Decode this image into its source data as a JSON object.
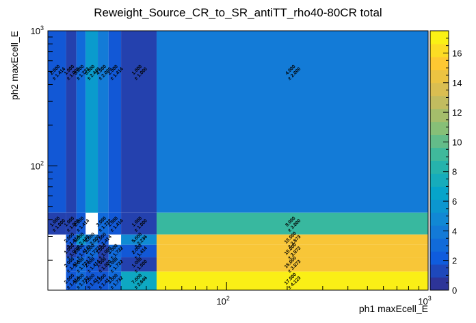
{
  "chart_data": {
    "type": "heatmap",
    "title": "Reweight_Source_CR_to_SR_antiTT_rho40-80CR total",
    "xlabel": "ph1 maxEcell_E",
    "ylabel": "ph2 maxEcell_E",
    "xscale": "log",
    "yscale": "log",
    "xlim": [
      13,
      1000
    ],
    "ylim": [
      12,
      1000
    ],
    "zlim": [
      0,
      17.5
    ],
    "x_major_ticks": [
      {
        "value": 100,
        "base": "10",
        "exp": "2"
      },
      {
        "value": 1000,
        "base": "10",
        "exp": "3"
      }
    ],
    "y_major_ticks": [
      {
        "value": 100,
        "base": "10",
        "exp": "2"
      },
      {
        "value": 1000,
        "base": "10",
        "exp": "3"
      }
    ],
    "colorbar_ticks": [
      "0",
      "2",
      "4",
      "6",
      "8",
      "10",
      "12",
      "14",
      "16"
    ],
    "colorbar_palette": [
      "#352a87",
      "#0f5cdd",
      "#1481d6",
      "#06a4ca",
      "#2eb7a4",
      "#87bf77",
      "#d1bb59",
      "#fec832",
      "#f9fb0e"
    ],
    "x_edges": [
      13,
      16,
      18,
      20,
      23,
      26,
      30,
      45,
      1000
    ],
    "y_edges": [
      12,
      16.5,
      21,
      26,
      31,
      45,
      1000
    ],
    "cells": [
      {
        "xi": 0,
        "yi": 5,
        "value": 2,
        "error": 1.414,
        "label": "2.000",
        "err_label": "± 1.414"
      },
      {
        "xi": 1,
        "yi": 5,
        "value": 1,
        "error": 1,
        "label": "1.000",
        "err_label": "± 1.000"
      },
      {
        "xi": 2,
        "yi": 5,
        "value": 3,
        "error": 1.732,
        "label": "3.000",
        "err_label": "± 1.732"
      },
      {
        "xi": 3,
        "yi": 5,
        "value": 6,
        "error": 2.449,
        "label": "6.000",
        "err_label": "± 2.449"
      },
      {
        "xi": 4,
        "yi": 5,
        "value": 4,
        "error": 2,
        "label": "4.000",
        "err_label": "± 2.000"
      },
      {
        "xi": 5,
        "yi": 5,
        "value": 2,
        "error": 1.414,
        "label": "2.000",
        "err_label": "± 1.414"
      },
      {
        "xi": 6,
        "yi": 5,
        "value": 1,
        "error": 1,
        "label": "1.000",
        "err_label": "± 1.000"
      },
      {
        "xi": 7,
        "yi": 5,
        "value": 4,
        "error": 2,
        "label": "4.000",
        "err_label": "± 2.000"
      },
      {
        "xi": 0,
        "yi": 4,
        "value": 1,
        "error": 1,
        "label": "1.000",
        "err_label": "± 1.000"
      },
      {
        "xi": 1,
        "yi": 4,
        "value": 1,
        "error": 1,
        "label": "1.000",
        "err_label": "± 1.000"
      },
      {
        "xi": 2,
        "yi": 4,
        "value": 2,
        "error": 1.414,
        "label": "2.000",
        "err_label": "± 1.414"
      },
      {
        "xi": 4,
        "yi": 4,
        "value": 3,
        "error": 1.732,
        "label": "3.000",
        "err_label": "± 1.732"
      },
      {
        "xi": 5,
        "yi": 4,
        "value": 2,
        "error": 1.414,
        "label": "2.000",
        "err_label": "± 1.414"
      },
      {
        "xi": 6,
        "yi": 4,
        "value": 1,
        "error": 1,
        "label": "1.000",
        "err_label": "± 1.000"
      },
      {
        "xi": 7,
        "yi": 4,
        "value": 9,
        "error": 3,
        "label": "9.000",
        "err_label": "± 3.000"
      },
      {
        "xi": 1,
        "yi": 3,
        "value": 2,
        "error": 1.414,
        "label": "2.000",
        "err_label": "± 1.414"
      },
      {
        "xi": 2,
        "yi": 3,
        "value": 6,
        "error": 2.449,
        "label": "6.000",
        "err_label": "± 2.449"
      },
      {
        "xi": 3,
        "yi": 3,
        "value": 4,
        "error": 2,
        "label": "4.000",
        "err_label": "± 2.000"
      },
      {
        "xi": 4,
        "yi": 3,
        "value": 2,
        "error": 1.414,
        "label": "2.000",
        "err_label": "± 1.414"
      },
      {
        "xi": 6,
        "yi": 3,
        "value": 5,
        "error": 2.236,
        "label": "5.000",
        "err_label": "± 2.236"
      },
      {
        "xi": 7,
        "yi": 3,
        "value": 15,
        "error": 3.873,
        "label": "15.000",
        "err_label": "± 3.873"
      },
      {
        "xi": 1,
        "yi": 2,
        "value": 1,
        "error": 1,
        "label": "1.000",
        "err_label": "± 1.000"
      },
      {
        "xi": 2,
        "yi": 2,
        "value": 2,
        "error": 1.414,
        "label": "2.000",
        "err_label": "± 1.414"
      },
      {
        "xi": 3,
        "yi": 2,
        "value": 3,
        "error": 1.732,
        "label": "3.000",
        "err_label": "± 1.732"
      },
      {
        "xi": 4,
        "yi": 2,
        "value": 1,
        "error": 1,
        "label": "1.000",
        "err_label": "± 1.000"
      },
      {
        "xi": 5,
        "yi": 2,
        "value": 3,
        "error": 1.732,
        "label": "3.000",
        "err_label": "± 1.732"
      },
      {
        "xi": 6,
        "yi": 2,
        "value": 2,
        "error": 1.414,
        "label": "2.000",
        "err_label": "± 1.414"
      },
      {
        "xi": 7,
        "yi": 2,
        "value": 15,
        "error": 3.873,
        "label": "15.000",
        "err_label": "± 3.873"
      },
      {
        "xi": 1,
        "yi": 1,
        "value": 2,
        "error": 1.414,
        "label": "2.000",
        "err_label": "± 1.414"
      },
      {
        "xi": 2,
        "yi": 1,
        "value": 3,
        "error": 1.732,
        "label": "3.000",
        "err_label": "± 1.732"
      },
      {
        "xi": 3,
        "yi": 1,
        "value": 2,
        "error": 1.414,
        "label": "2.000",
        "err_label": "± 1.414"
      },
      {
        "xi": 4,
        "yi": 1,
        "value": 1,
        "error": 1,
        "label": "1.000",
        "err_label": "± 1.000"
      },
      {
        "xi": 5,
        "yi": 1,
        "value": 3,
        "error": 1.732,
        "label": "3.000",
        "err_label": "± 1.732"
      },
      {
        "xi": 6,
        "yi": 1,
        "value": 1,
        "error": 1,
        "label": "1.000",
        "err_label": "± 1.000"
      },
      {
        "xi": 7,
        "yi": 1,
        "value": 15,
        "error": 3.873,
        "label": "15.000",
        "err_label": "± 3.873"
      },
      {
        "xi": 1,
        "yi": 0,
        "value": 2,
        "error": 1.414,
        "label": "2.000",
        "err_label": "± 1.414"
      },
      {
        "xi": 2,
        "yi": 0,
        "value": 3,
        "error": 1.732,
        "label": "3.000",
        "err_label": "± 1.732"
      },
      {
        "xi": 3,
        "yi": 0,
        "value": 2,
        "error": 1.414,
        "label": "2.000",
        "err_label": "± 1.414"
      },
      {
        "xi": 4,
        "yi": 0,
        "value": 2,
        "error": 1.414,
        "label": "2.000",
        "err_label": "± 1.414"
      },
      {
        "xi": 5,
        "yi": 0,
        "value": 3,
        "error": 1.732,
        "label": "3.000",
        "err_label": "± 1.732"
      },
      {
        "xi": 6,
        "yi": 0,
        "value": 7,
        "error": 2.646,
        "label": "7.000",
        "err_label": "± 2.646"
      },
      {
        "xi": 7,
        "yi": 0,
        "value": 17,
        "error": 4.123,
        "label": "17.000",
        "err_label": "± 4.123"
      }
    ]
  }
}
